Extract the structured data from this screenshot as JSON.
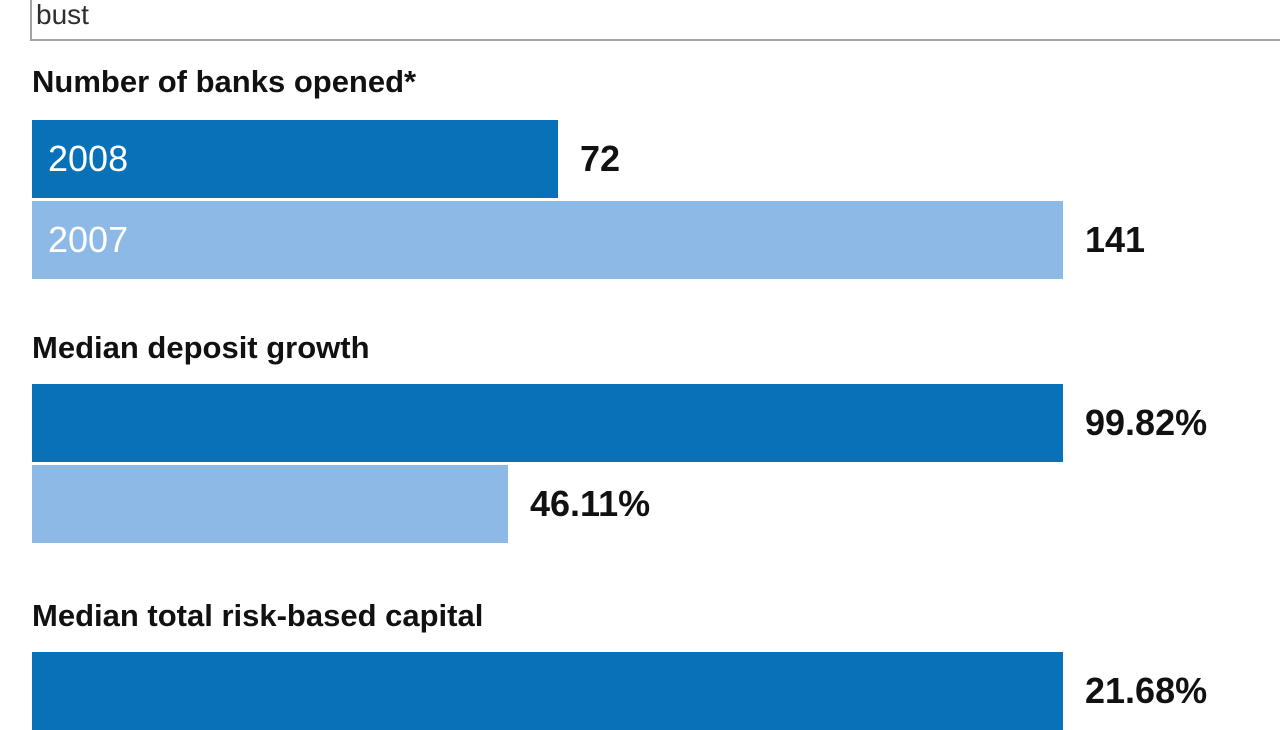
{
  "header": {
    "partial_title": "bust"
  },
  "colors": {
    "dark_blue": "#0872B9",
    "light_blue": "#8CB9E6",
    "divider_gray": "#a3a3a3"
  },
  "chart_data": {
    "type": "bar",
    "orientation": "horizontal",
    "legend": [
      "2008",
      "2007"
    ],
    "legend_note": "dark blue = 2008, light blue = 2007; each group scaled to its own maximum",
    "groups": [
      {
        "title": "Number of banks opened*",
        "bars": [
          {
            "year": "2008",
            "label": "2008",
            "value": 72,
            "display": "72",
            "color": "dark_blue"
          },
          {
            "year": "2007",
            "label": "2007",
            "value": 141,
            "display": "141",
            "color": "light_blue"
          }
        ]
      },
      {
        "title": "Median deposit growth",
        "bars": [
          {
            "year": "2008",
            "value": 99.82,
            "display": "99.82%",
            "color": "dark_blue"
          },
          {
            "year": "2007",
            "value": 46.11,
            "display": "46.11%",
            "color": "light_blue"
          }
        ]
      },
      {
        "title": "Median total risk-based capital",
        "bars": [
          {
            "year": "2008",
            "value": 21.68,
            "display": "21.68%",
            "color": "dark_blue"
          }
        ]
      }
    ]
  }
}
